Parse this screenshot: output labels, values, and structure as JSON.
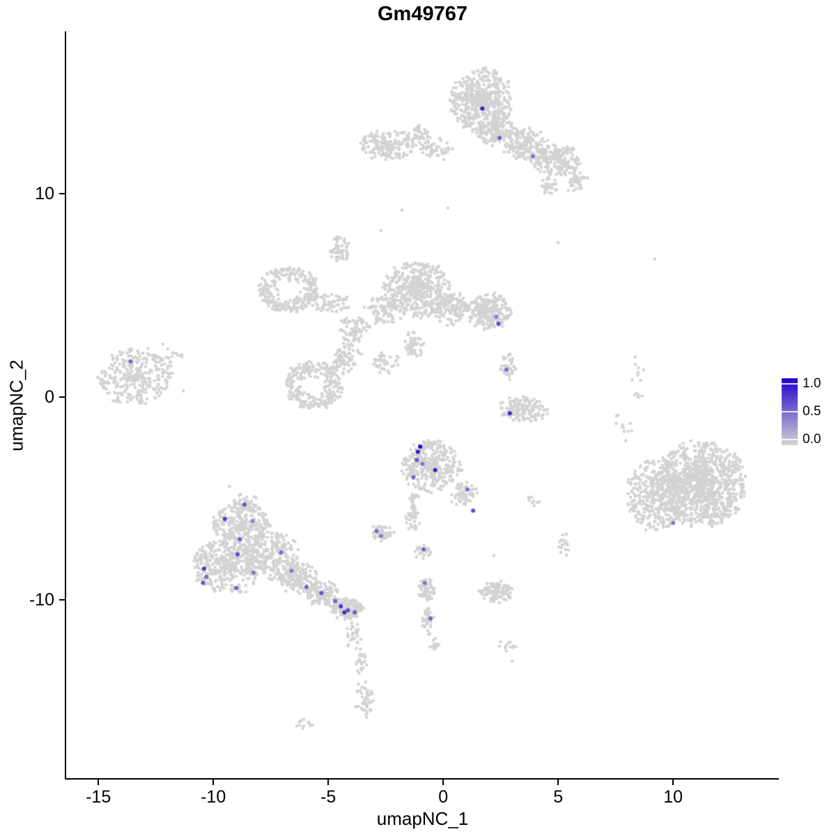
{
  "figure": {
    "title": "Gm49767",
    "x_axis_label": "umapNC_1",
    "y_axis_label": "umapNC_2"
  },
  "chart_data": {
    "type": "scatter",
    "title": "Gm49767",
    "subtitle": "",
    "xlabel": "umapNC_1",
    "ylabel": "umapNC_2",
    "xlim": [
      -16.4,
      14.6
    ],
    "ylim": [
      -18.8,
      18.0
    ],
    "x_ticks": [
      -15,
      -10,
      -5,
      0,
      5,
      10
    ],
    "y_ticks": [
      -10,
      0,
      10
    ],
    "grid": false,
    "point_radius": 2.3,
    "colors": {
      "low": "#D3D3D3",
      "high": "#2200CC",
      "background": "#FFFFFF",
      "axis": "#000000",
      "text": "#000000"
    },
    "legend": {
      "position": "right",
      "vmin": 0.0,
      "vmax": 1.0,
      "ticks": [
        1.0,
        0.5,
        0.0
      ],
      "tick_labels": [
        "1.0",
        "0.5",
        "0.0"
      ]
    },
    "background_clusters": [
      {
        "cx": 1.7,
        "cy": 14.6,
        "rx": 1.35,
        "ry": 1.6,
        "n": 520
      },
      {
        "cx": 2.4,
        "cy": 13.0,
        "rx": 0.9,
        "ry": 0.7,
        "n": 140
      },
      {
        "cx": 3.6,
        "cy": 12.4,
        "rx": 1.0,
        "ry": 0.8,
        "n": 170
      },
      {
        "cx": 4.9,
        "cy": 11.7,
        "rx": 1.1,
        "ry": 0.8,
        "n": 190
      },
      {
        "cx": 5.8,
        "cy": 10.6,
        "rx": 0.5,
        "ry": 0.5,
        "n": 40
      },
      {
        "cx": 4.6,
        "cy": 10.4,
        "rx": 0.4,
        "ry": 0.4,
        "n": 28
      },
      {
        "cx": -2.4,
        "cy": 12.4,
        "rx": 1.2,
        "ry": 0.75,
        "n": 170
      },
      {
        "cx": -1.1,
        "cy": 12.9,
        "rx": 0.55,
        "ry": 0.5,
        "n": 45
      },
      {
        "cx": -0.3,
        "cy": 12.2,
        "rx": 0.7,
        "ry": 0.5,
        "n": 45
      },
      {
        "cx": -4.5,
        "cy": 7.2,
        "rx": 0.45,
        "ry": 0.7,
        "n": 55
      },
      {
        "cx": -1.1,
        "cy": 5.3,
        "rx": 1.5,
        "ry": 1.35,
        "n": 430
      },
      {
        "cx": 0.3,
        "cy": 4.4,
        "rx": 0.8,
        "ry": 0.8,
        "n": 120
      },
      {
        "cx": 2.0,
        "cy": 4.2,
        "rx": 0.95,
        "ry": 0.9,
        "n": 240
      },
      {
        "cx": -2.6,
        "cy": 4.3,
        "rx": 0.85,
        "ry": 0.7,
        "n": 90
      },
      {
        "cx": -6.7,
        "cy": 5.3,
        "rx": 1.3,
        "ry": 1.1,
        "n": 260,
        "hole": 0.35
      },
      {
        "cx": -5.0,
        "cy": 4.6,
        "rx": 0.9,
        "ry": 0.5,
        "n": 60
      },
      {
        "cx": -3.9,
        "cy": 3.3,
        "rx": 0.7,
        "ry": 0.6,
        "n": 70
      },
      {
        "cx": -5.6,
        "cy": 0.6,
        "rx": 1.25,
        "ry": 1.15,
        "n": 260,
        "hole": 0.3
      },
      {
        "cx": -4.2,
        "cy": 1.9,
        "rx": 0.6,
        "ry": 0.8,
        "n": 70
      },
      {
        "cx": -2.5,
        "cy": 1.7,
        "rx": 0.6,
        "ry": 0.5,
        "n": 40
      },
      {
        "cx": -1.3,
        "cy": 2.6,
        "rx": 0.5,
        "ry": 0.6,
        "n": 50
      },
      {
        "cx": -13.4,
        "cy": 1.0,
        "rx": 1.55,
        "ry": 1.4,
        "n": 310
      },
      {
        "cx": -11.9,
        "cy": 1.9,
        "rx": 0.6,
        "ry": 0.5,
        "n": 22
      },
      {
        "cx": 2.8,
        "cy": 1.5,
        "rx": 0.35,
        "ry": 0.6,
        "n": 40
      },
      {
        "cx": 3.5,
        "cy": -0.6,
        "rx": 1.05,
        "ry": 0.6,
        "n": 140
      },
      {
        "cx": 9.3,
        "cy": -4.8,
        "rx": 1.3,
        "ry": 1.8,
        "n": 380
      },
      {
        "cx": 11.2,
        "cy": -4.3,
        "rx": 2.0,
        "ry": 2.1,
        "n": 1050
      },
      {
        "cx": 8.4,
        "cy": 0.8,
        "rx": 0.3,
        "ry": 1.2,
        "n": 14
      },
      {
        "cx": 7.8,
        "cy": -1.6,
        "rx": 0.4,
        "ry": 0.8,
        "n": 10
      },
      {
        "cx": -0.5,
        "cy": -3.4,
        "rx": 1.3,
        "ry": 1.25,
        "n": 340
      },
      {
        "cx": -1.3,
        "cy": -5.6,
        "rx": 0.3,
        "ry": 0.95,
        "n": 60
      },
      {
        "cx": 0.9,
        "cy": -4.8,
        "rx": 0.55,
        "ry": 0.6,
        "n": 60
      },
      {
        "cx": -2.7,
        "cy": -6.7,
        "rx": 0.5,
        "ry": 0.45,
        "n": 55
      },
      {
        "cx": -0.9,
        "cy": -7.6,
        "rx": 0.4,
        "ry": 0.35,
        "n": 25
      },
      {
        "cx": -8.6,
        "cy": -5.3,
        "rx": 0.65,
        "ry": 0.45,
        "n": 55
      },
      {
        "cx": -8.8,
        "cy": -6.4,
        "rx": 1.3,
        "ry": 1.1,
        "n": 260
      },
      {
        "cx": -9.4,
        "cy": -8.3,
        "rx": 1.5,
        "ry": 1.4,
        "n": 380
      },
      {
        "cx": -7.5,
        "cy": -7.8,
        "rx": 1.2,
        "ry": 1.2,
        "n": 260
      },
      {
        "cx": -6.3,
        "cy": -8.9,
        "rx": 0.9,
        "ry": 0.8,
        "n": 160
      },
      {
        "cx": -5.2,
        "cy": -9.7,
        "rx": 0.8,
        "ry": 0.6,
        "n": 130
      },
      {
        "cx": -4.2,
        "cy": -10.4,
        "rx": 0.7,
        "ry": 0.5,
        "n": 170
      },
      {
        "cx": -3.9,
        "cy": -11.7,
        "rx": 0.35,
        "ry": 0.7,
        "n": 28
      },
      {
        "cx": -3.6,
        "cy": -13.1,
        "rx": 0.25,
        "ry": 0.8,
        "n": 22
      },
      {
        "cx": -3.4,
        "cy": -14.9,
        "rx": 0.4,
        "ry": 0.95,
        "n": 45
      },
      {
        "cx": -6.0,
        "cy": -16.1,
        "rx": 0.45,
        "ry": 0.25,
        "n": 12
      },
      {
        "cx": -0.75,
        "cy": -9.5,
        "rx": 0.35,
        "ry": 0.55,
        "n": 60
      },
      {
        "cx": -0.7,
        "cy": -10.9,
        "rx": 0.25,
        "ry": 0.75,
        "n": 35
      },
      {
        "cx": -0.4,
        "cy": -12.1,
        "rx": 0.3,
        "ry": 0.4,
        "n": 12
      },
      {
        "cx": 2.3,
        "cy": -9.6,
        "rx": 0.7,
        "ry": 0.5,
        "n": 110
      },
      {
        "cx": 2.8,
        "cy": -12.3,
        "rx": 0.4,
        "ry": 0.3,
        "n": 12
      },
      {
        "cx": 5.3,
        "cy": -7.3,
        "rx": 0.35,
        "ry": 0.55,
        "n": 16
      },
      {
        "cx": 3.9,
        "cy": -5.1,
        "rx": 0.3,
        "ry": 0.3,
        "n": 8
      }
    ],
    "sparse_points": [
      [
        -2.7,
        8.2
      ],
      [
        0.2,
        9.3
      ],
      [
        -1.8,
        9.2
      ],
      [
        9.2,
        6.8
      ],
      [
        5.0,
        7.6
      ],
      [
        -12.2,
        2.6
      ],
      [
        -11.3,
        0.3
      ],
      [
        2.2,
        -7.8
      ],
      [
        -9.3,
        -4.4
      ],
      [
        7.6,
        -0.9
      ],
      [
        3.0,
        -13.0
      ]
    ],
    "expressing_points": [
      [
        1.7,
        14.2,
        0.85
      ],
      [
        2.45,
        12.75,
        0.55
      ],
      [
        3.9,
        11.85,
        0.45
      ],
      [
        2.4,
        3.6,
        0.65
      ],
      [
        2.3,
        3.95,
        0.4
      ],
      [
        -13.6,
        1.75,
        0.5
      ],
      [
        2.75,
        1.35,
        0.45
      ],
      [
        2.9,
        -0.8,
        0.8
      ],
      [
        -1.0,
        -2.45,
        1.0
      ],
      [
        -1.1,
        -2.7,
        0.9
      ],
      [
        -1.15,
        -3.1,
        0.6
      ],
      [
        -0.35,
        -3.6,
        0.85
      ],
      [
        -0.9,
        -3.3,
        0.45
      ],
      [
        -1.3,
        -3.95,
        0.55
      ],
      [
        1.05,
        -4.55,
        0.5
      ],
      [
        1.3,
        -5.6,
        0.65
      ],
      [
        -2.9,
        -6.6,
        0.5
      ],
      [
        -2.7,
        -6.85,
        0.4
      ],
      [
        -0.85,
        -7.5,
        0.55
      ],
      [
        -8.65,
        -5.3,
        0.6
      ],
      [
        -9.5,
        -6.0,
        0.75
      ],
      [
        -8.3,
        -6.1,
        0.4
      ],
      [
        -8.85,
        -7.0,
        0.55
      ],
      [
        -8.95,
        -7.75,
        0.65
      ],
      [
        -7.05,
        -7.65,
        0.5
      ],
      [
        -10.4,
        -8.45,
        0.75
      ],
      [
        -10.3,
        -8.85,
        0.5
      ],
      [
        -10.45,
        -9.15,
        0.6
      ],
      [
        -9.0,
        -9.4,
        0.55
      ],
      [
        -8.25,
        -8.65,
        0.45
      ],
      [
        -6.6,
        -8.55,
        0.45
      ],
      [
        -5.95,
        -9.35,
        0.55
      ],
      [
        -5.3,
        -9.65,
        0.6
      ],
      [
        -4.7,
        -10.05,
        0.55
      ],
      [
        -4.45,
        -10.3,
        0.75
      ],
      [
        -4.3,
        -10.6,
        0.8
      ],
      [
        -4.15,
        -10.5,
        0.65
      ],
      [
        -3.85,
        -10.6,
        0.55
      ],
      [
        -0.8,
        -9.15,
        0.45
      ],
      [
        -0.55,
        -10.9,
        0.55
      ],
      [
        10.0,
        -6.2,
        0.45
      ]
    ]
  }
}
